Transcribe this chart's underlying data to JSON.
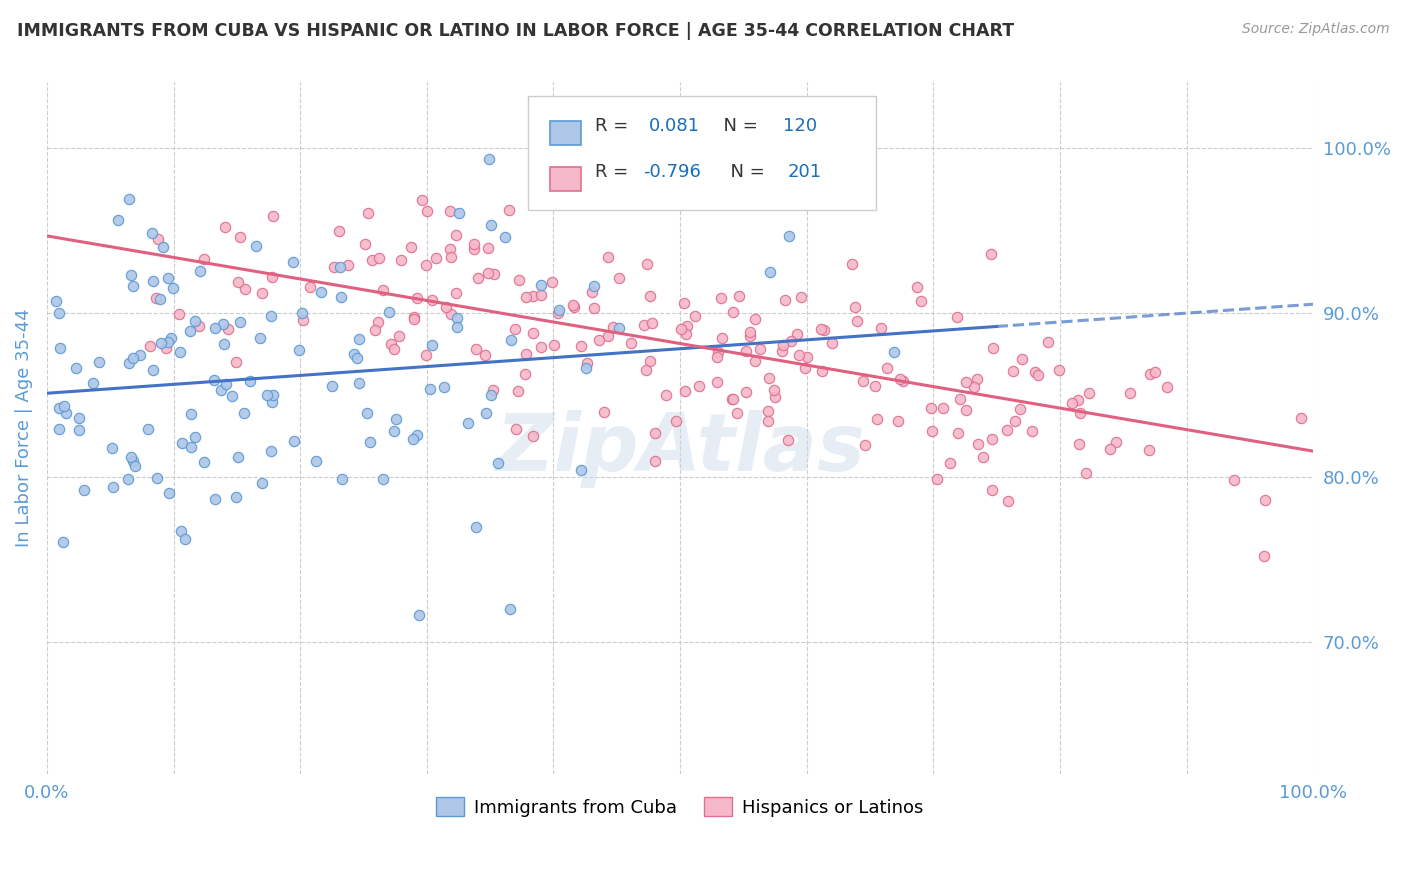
{
  "title": "IMMIGRANTS FROM CUBA VS HISPANIC OR LATINO IN LABOR FORCE | AGE 35-44 CORRELATION CHART",
  "source_text": "Source: ZipAtlas.com",
  "ylabel": "In Labor Force | Age 35-44",
  "xlim": [
    0.0,
    1.0
  ],
  "ylim": [
    0.62,
    1.04
  ],
  "right_yticks": [
    0.7,
    0.8,
    0.9,
    1.0
  ],
  "right_yticklabels": [
    "70.0%",
    "80.0%",
    "90.0%",
    "100.0%"
  ],
  "xticks": [
    0.0,
    0.1,
    0.2,
    0.3,
    0.4,
    0.5,
    0.6,
    0.7,
    0.8,
    0.9,
    1.0
  ],
  "xticklabels": [
    "0.0%",
    "",
    "",
    "",
    "",
    "",
    "",
    "",
    "",
    "",
    "100.0%"
  ],
  "grid_color": "#cccccc",
  "background_color": "#ffffff",
  "series1": {
    "name": "Immigrants from Cuba",
    "color": "#aec6e8",
    "edge_color": "#5b9bd5",
    "R": 0.081,
    "N": 120,
    "trend_color": "#4472c4",
    "legend_face": "#aec6e8",
    "legend_edge": "#5b9bd5"
  },
  "series2": {
    "name": "Hispanics or Latinos",
    "color": "#f4b8c8",
    "edge_color": "#e07090",
    "R": -0.796,
    "N": 201,
    "trend_color": "#e06080",
    "legend_face": "#f4b8c8",
    "legend_edge": "#e07090"
  },
  "watermark": "ZipAtlas",
  "title_color": "#333333",
  "axis_label_color": "#5b9bd5",
  "tick_label_color": "#5b9bd5",
  "legend_R_color": "#1a6fba",
  "legend_N_color": "#1a6fba"
}
